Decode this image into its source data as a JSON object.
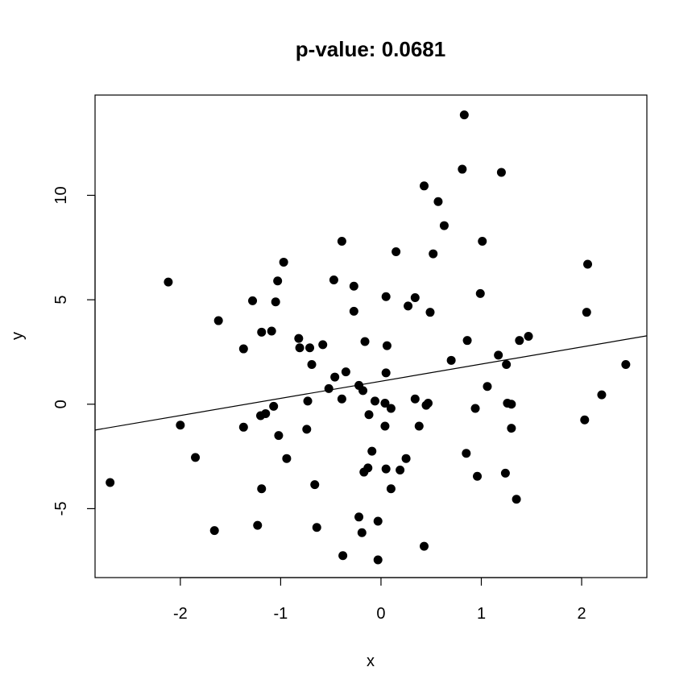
{
  "chart_data": {
    "type": "scatter",
    "title": "p-value: 0.0681",
    "xlabel": "x",
    "ylabel": "y",
    "xlim": [
      -2.85,
      2.65
    ],
    "ylim": [
      -8.3,
      14.8
    ],
    "grid": false,
    "x_ticks": [
      {
        "value": -2,
        "label": "-2"
      },
      {
        "value": -1,
        "label": "-1"
      },
      {
        "value": 0,
        "label": "0"
      },
      {
        "value": 1,
        "label": "1"
      },
      {
        "value": 2,
        "label": "2"
      }
    ],
    "y_ticks": [
      {
        "value": -5,
        "label": "-5"
      },
      {
        "value": 0,
        "label": "0"
      },
      {
        "value": 5,
        "label": "5"
      },
      {
        "value": 10,
        "label": "10"
      }
    ],
    "fit_line": {
      "intercept": 1.1,
      "slope": 0.82
    },
    "points": [
      [
        0.83,
        13.85
      ],
      [
        0.81,
        11.25
      ],
      [
        1.2,
        11.1
      ],
      [
        0.43,
        10.45
      ],
      [
        0.57,
        9.7
      ],
      [
        0.63,
        8.55
      ],
      [
        -0.39,
        7.8
      ],
      [
        1.01,
        7.8
      ],
      [
        0.15,
        7.3
      ],
      [
        0.52,
        7.2
      ],
      [
        2.06,
        6.7
      ],
      [
        -0.97,
        6.8
      ],
      [
        -2.12,
        5.85
      ],
      [
        -1.03,
        5.9
      ],
      [
        -0.47,
        5.95
      ],
      [
        -0.27,
        5.65
      ],
      [
        0.99,
        5.3
      ],
      [
        0.05,
        5.15
      ],
      [
        0.34,
        5.1
      ],
      [
        -1.28,
        4.95
      ],
      [
        -1.05,
        4.9
      ],
      [
        0.27,
        4.7
      ],
      [
        -0.27,
        4.45
      ],
      [
        0.49,
        4.4
      ],
      [
        2.05,
        4.4
      ],
      [
        -1.62,
        4.0
      ],
      [
        -1.19,
        3.45
      ],
      [
        -1.09,
        3.5
      ],
      [
        1.47,
        3.25
      ],
      [
        -0.82,
        3.15
      ],
      [
        0.86,
        3.05
      ],
      [
        1.38,
        3.05
      ],
      [
        -0.16,
        3.0
      ],
      [
        -0.58,
        2.85
      ],
      [
        0.06,
        2.8
      ],
      [
        -1.37,
        2.65
      ],
      [
        -0.81,
        2.7
      ],
      [
        -0.71,
        2.7
      ],
      [
        1.17,
        2.35
      ],
      [
        0.7,
        2.1
      ],
      [
        2.44,
        1.9
      ],
      [
        1.25,
        1.9
      ],
      [
        -0.69,
        1.9
      ],
      [
        -0.35,
        1.55
      ],
      [
        0.05,
        1.5
      ],
      [
        -0.46,
        1.3
      ],
      [
        -0.22,
        0.9
      ],
      [
        1.06,
        0.85
      ],
      [
        -0.52,
        0.75
      ],
      [
        -0.18,
        0.65
      ],
      [
        2.2,
        0.45
      ],
      [
        -0.39,
        0.25
      ],
      [
        0.34,
        0.25
      ],
      [
        -0.73,
        0.15
      ],
      [
        -0.06,
        0.15
      ],
      [
        0.47,
        0.05
      ],
      [
        0.04,
        0.05
      ],
      [
        1.26,
        0.05
      ],
      [
        1.3,
        0.0
      ],
      [
        0.45,
        -0.05
      ],
      [
        -1.07,
        -0.1
      ],
      [
        0.1,
        -0.2
      ],
      [
        0.94,
        -0.2
      ],
      [
        -1.15,
        -0.45
      ],
      [
        -1.2,
        -0.55
      ],
      [
        -0.12,
        -0.5
      ],
      [
        2.03,
        -0.75
      ],
      [
        -2.0,
        -1.0
      ],
      [
        0.04,
        -1.05
      ],
      [
        0.38,
        -1.05
      ],
      [
        -1.37,
        -1.1
      ],
      [
        1.3,
        -1.15
      ],
      [
        -0.74,
        -1.2
      ],
      [
        -1.02,
        -1.5
      ],
      [
        -0.09,
        -2.25
      ],
      [
        0.85,
        -2.35
      ],
      [
        -1.85,
        -2.55
      ],
      [
        -0.94,
        -2.6
      ],
      [
        0.25,
        -2.6
      ],
      [
        -0.13,
        -3.05
      ],
      [
        -0.17,
        -3.25
      ],
      [
        0.05,
        -3.1
      ],
      [
        0.19,
        -3.15
      ],
      [
        1.24,
        -3.3
      ],
      [
        0.96,
        -3.45
      ],
      [
        -2.7,
        -3.75
      ],
      [
        -0.66,
        -3.85
      ],
      [
        -1.19,
        -4.05
      ],
      [
        0.1,
        -4.05
      ],
      [
        1.35,
        -4.55
      ],
      [
        -0.22,
        -5.4
      ],
      [
        -0.03,
        -5.6
      ],
      [
        -1.23,
        -5.8
      ],
      [
        -0.64,
        -5.9
      ],
      [
        -1.66,
        -6.05
      ],
      [
        -0.19,
        -6.15
      ],
      [
        0.43,
        -6.8
      ],
      [
        -0.38,
        -7.25
      ],
      [
        -0.03,
        -7.45
      ]
    ]
  }
}
